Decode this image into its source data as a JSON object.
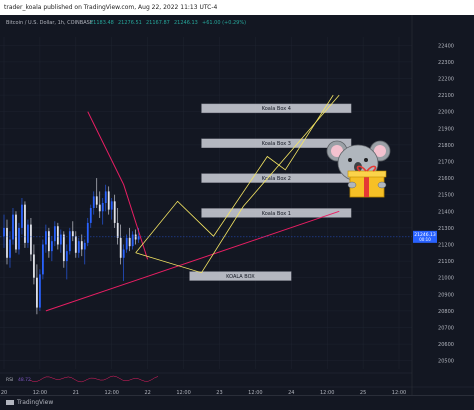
{
  "publisher_line": "trader_koala published on TradingView.com, Aug 22, 2022 11:13 UTC-4",
  "footer": {
    "brand": "TradingView"
  },
  "chart_data": {
    "type": "candlestick",
    "symbol_line": "Bitcoin / U.S. Dollar, 1h, COINBASE",
    "ohlc_values": [
      "21183.48",
      "21276.51",
      "21167.87",
      "21246.13",
      "+61.00 (+0.29%)"
    ],
    "y_ticks": [
      22400,
      22300,
      22200,
      22100,
      22000,
      21900,
      21800,
      21700,
      21600,
      21500,
      21400,
      21300,
      21200,
      21100,
      21000,
      20900,
      20800,
      20700,
      20600,
      20500
    ],
    "ylim": [
      20450,
      22450
    ],
    "x_ticks": [
      {
        "label": "20",
        "x": 0
      },
      {
        "label": "12:00",
        "x": 12
      },
      {
        "label": "21",
        "x": 24
      },
      {
        "label": "12:00",
        "x": 36
      },
      {
        "label": "22",
        "x": 48
      },
      {
        "label": "12:00",
        "x": 60
      },
      {
        "label": "23",
        "x": 72
      },
      {
        "label": "12:00",
        "x": 84
      },
      {
        "label": "24",
        "x": 96
      },
      {
        "label": "12:00",
        "x": 108
      },
      {
        "label": "25",
        "x": 120
      },
      {
        "label": "12:00",
        "x": 132
      }
    ],
    "xlim": [
      0,
      135
    ],
    "candles": [
      [
        0,
        21250,
        21380,
        21180,
        21300
      ],
      [
        1,
        21300,
        21350,
        21080,
        21120
      ],
      [
        2,
        21120,
        21280,
        21060,
        21230
      ],
      [
        3,
        21230,
        21420,
        21200,
        21380
      ],
      [
        4,
        21380,
        21400,
        21150,
        21170
      ],
      [
        5,
        21170,
        21330,
        21140,
        21300
      ],
      [
        6,
        21300,
        21480,
        21260,
        21440
      ],
      [
        7,
        21440,
        21460,
        21180,
        21210
      ],
      [
        8,
        21210,
        21350,
        21180,
        21320
      ],
      [
        9,
        21320,
        21360,
        21100,
        21140
      ],
      [
        10,
        21140,
        21200,
        20960,
        21000
      ],
      [
        11,
        21000,
        21080,
        20780,
        20820
      ],
      [
        12,
        20820,
        21050,
        20800,
        21020
      ],
      [
        13,
        21020,
        21230,
        20990,
        21200
      ],
      [
        14,
        21200,
        21320,
        21150,
        21280
      ],
      [
        15,
        21280,
        21300,
        21120,
        21160
      ],
      [
        16,
        21160,
        21250,
        21100,
        21220
      ],
      [
        17,
        21220,
        21340,
        21190,
        21310
      ],
      [
        18,
        21310,
        21330,
        21170,
        21200
      ],
      [
        19,
        21200,
        21290,
        21150,
        21260
      ],
      [
        20,
        21260,
        21280,
        21060,
        21100
      ],
      [
        21,
        21100,
        21200,
        20990,
        21160
      ],
      [
        22,
        21160,
        21300,
        21140,
        21280
      ],
      [
        23,
        21280,
        21340,
        21220,
        21250
      ],
      [
        24,
        21250,
        21280,
        21120,
        21150
      ],
      [
        25,
        21150,
        21240,
        21120,
        21220
      ],
      [
        26,
        21220,
        21260,
        21130,
        21170
      ],
      [
        27,
        21170,
        21230,
        21080,
        21210
      ],
      [
        28,
        21210,
        21360,
        21190,
        21330
      ],
      [
        29,
        21330,
        21440,
        21300,
        21420
      ],
      [
        30,
        21420,
        21520,
        21380,
        21490
      ],
      [
        31,
        21490,
        21600,
        21420,
        21440
      ],
      [
        32,
        21440,
        21520,
        21360,
        21400
      ],
      [
        33,
        21400,
        21480,
        21320,
        21450
      ],
      [
        34,
        21450,
        21560,
        21400,
        21520
      ],
      [
        35,
        21520,
        21550,
        21380,
        21410
      ],
      [
        36,
        21410,
        21480,
        21350,
        21460
      ],
      [
        37,
        21460,
        21500,
        21300,
        21330
      ],
      [
        38,
        21330,
        21420,
        21200,
        21240
      ],
      [
        39,
        21240,
        21320,
        21080,
        21120
      ],
      [
        40,
        21120,
        21200,
        20980,
        21170
      ],
      [
        41,
        21170,
        21260,
        21150,
        21240
      ],
      [
        42,
        21240,
        21300,
        21160,
        21190
      ],
      [
        43,
        21190,
        21280,
        21170,
        21260
      ],
      [
        44,
        21260,
        21290,
        21200,
        21230
      ],
      [
        45,
        21230,
        21300,
        21210,
        21250
      ]
    ],
    "rsi": {
      "label": "RSI",
      "value": "48.72"
    }
  },
  "annotations": {
    "boxes": [
      {
        "label": "Koala Box 4",
        "price": 22020
      },
      {
        "label": "Koala Box 3",
        "price": 21810
      },
      {
        "label": "Koala Box 2",
        "price": 21600
      },
      {
        "label": "Koala Box 1",
        "price": 21390
      },
      {
        "label": "KOALA BOX",
        "price": 21010
      }
    ],
    "current_price": "21246.13",
    "price_countdown": "00:10"
  },
  "colors": {
    "background": "#131722",
    "grid": "#1f2430",
    "up": "#2962ff",
    "down": "#e1e3ea",
    "pink_line": "#e91e63",
    "yellow_path": "#f5e663",
    "box_fill": "#d1d4dc",
    "axis_text": "#b2b5be",
    "price_tag": "#2962ff"
  }
}
